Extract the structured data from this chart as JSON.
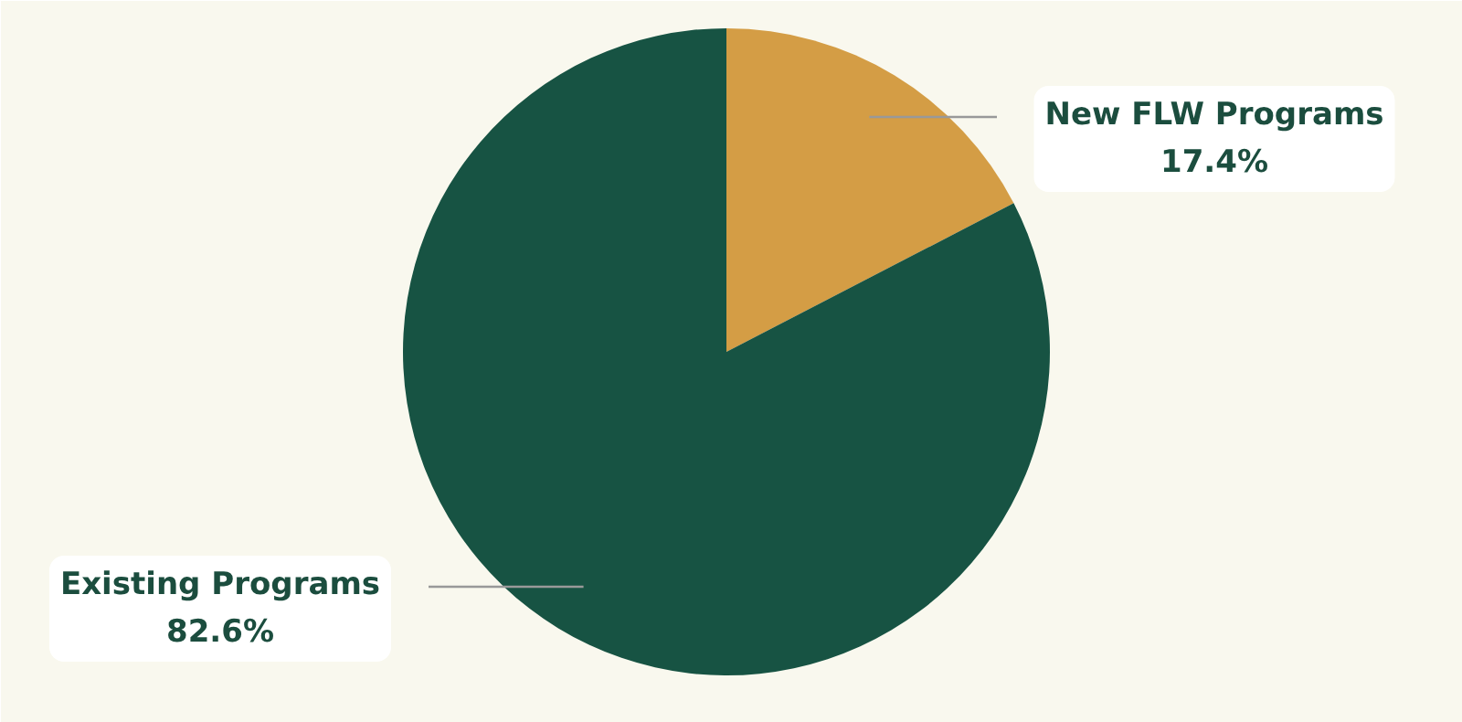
{
  "chart_data": {
    "type": "pie",
    "categories": [
      "New FLW Programs",
      "Existing Programs"
    ],
    "values": [
      17.4,
      82.6
    ],
    "value_labels": [
      "17.4%",
      "82.6%"
    ],
    "colors": [
      "#d49d45",
      "#175343"
    ]
  }
}
